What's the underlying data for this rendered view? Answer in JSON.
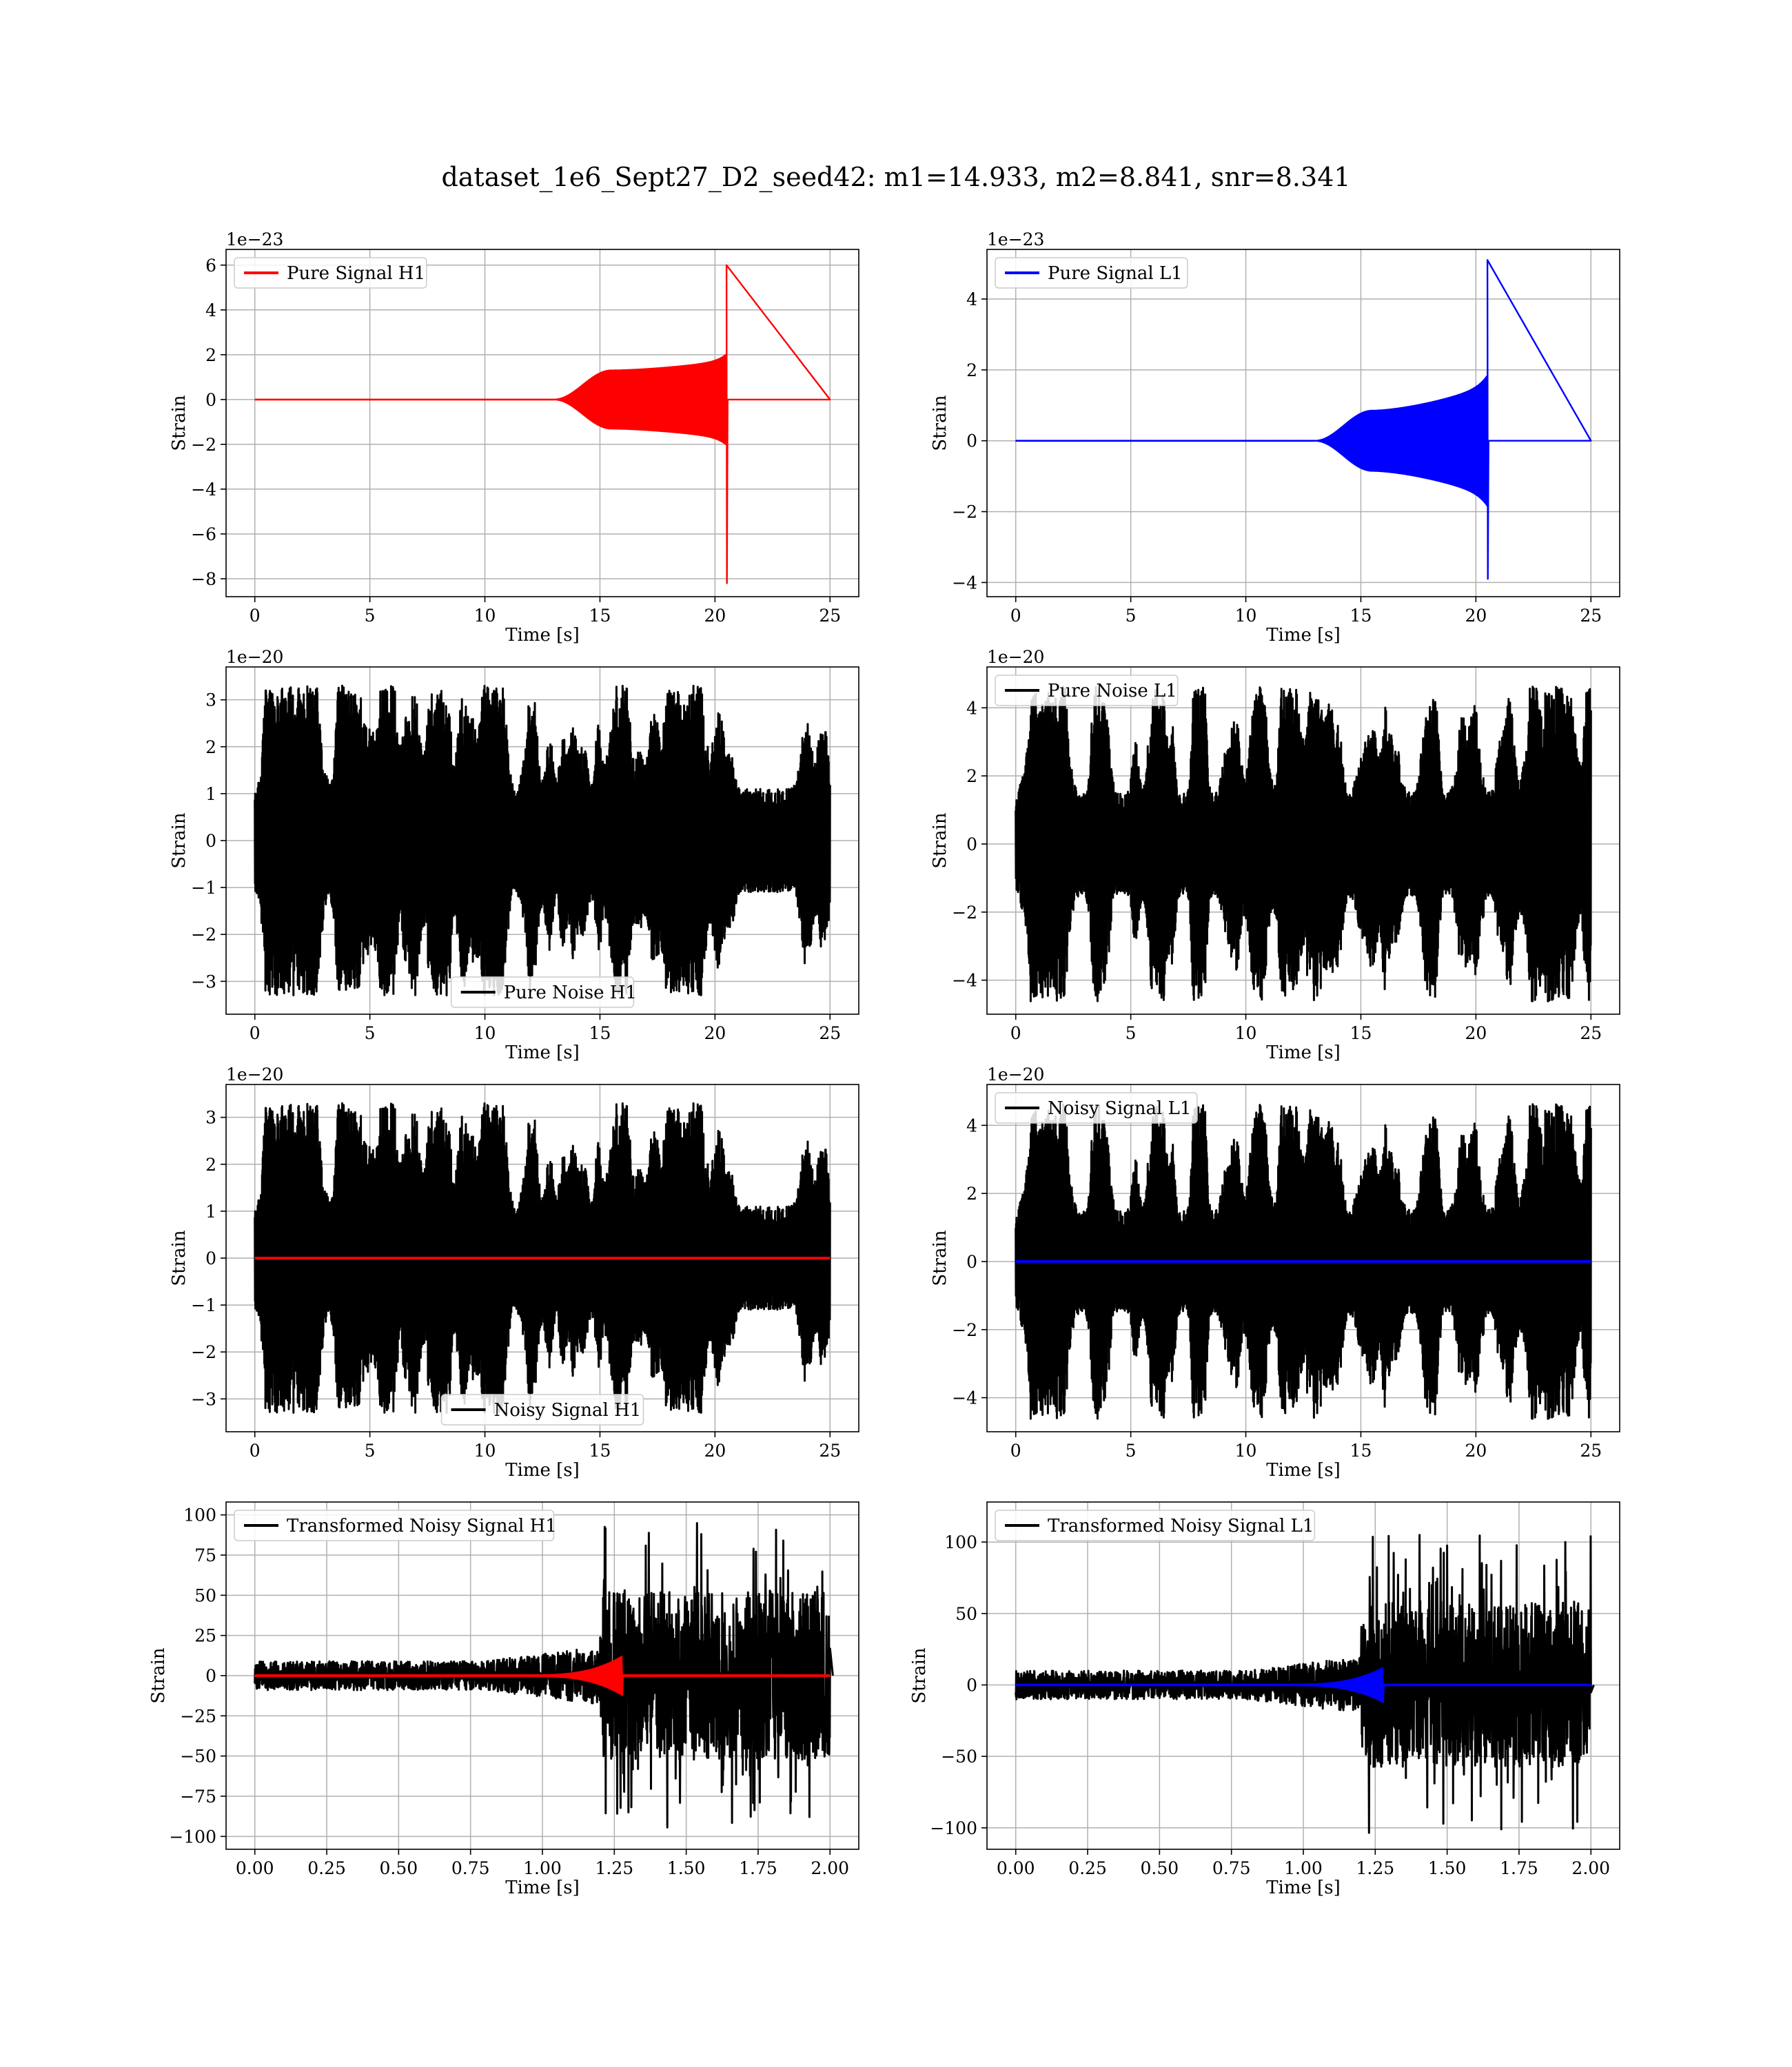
{
  "figure_title": "dataset_1e6_Sept27_D2_seed42: m1=14.933, m2=8.841, snr=8.341",
  "colors": {
    "h1_signal": "#ff0000",
    "l1_signal": "#0000ff",
    "noise": "#000000",
    "grid": "#b0b0b0",
    "axes": "#000000",
    "background": "#ffffff"
  },
  "chart_data": [
    {
      "id": "pure-signal-h1",
      "type": "line",
      "xlabel": "Time [s]",
      "ylabel": "Strain",
      "offset_text": "1e−23",
      "xlim": [
        -1.25,
        26.25
      ],
      "ylim": [
        -8.8,
        6.7
      ],
      "xticks": [
        0,
        5,
        10,
        15,
        20,
        25
      ],
      "yticks": [
        -8,
        -6,
        -4,
        -2,
        0,
        2,
        4,
        6
      ],
      "xtick_labels": [
        "0",
        "5",
        "10",
        "15",
        "20",
        "25"
      ],
      "ytick_labels": [
        "−8",
        "−6",
        "−4",
        "−2",
        "0",
        "2",
        "4",
        "6"
      ],
      "grid": true,
      "legend": "upper-left",
      "series": [
        {
          "name": "Pure Signal H1",
          "color": "#ff0000",
          "kind": "chirp",
          "params": {
            "t_merger": 20.5,
            "t_end": 25,
            "rise_start": 13.0,
            "plateau": 1.3,
            "plateau_t": 15.5,
            "peak_pos": 6.0,
            "peak_neg": -8.2
          }
        }
      ]
    },
    {
      "id": "pure-signal-l1",
      "type": "line",
      "xlabel": "Time [s]",
      "ylabel": "Strain",
      "offset_text": "1e−23",
      "xlim": [
        -1.25,
        26.25
      ],
      "ylim": [
        -4.4,
        5.4
      ],
      "xticks": [
        0,
        5,
        10,
        15,
        20,
        25
      ],
      "yticks": [
        -4,
        -2,
        0,
        2,
        4
      ],
      "xtick_labels": [
        "0",
        "5",
        "10",
        "15",
        "20",
        "25"
      ],
      "ytick_labels": [
        "−4",
        "−2",
        "0",
        "2",
        "4"
      ],
      "grid": true,
      "legend": "upper-left",
      "series": [
        {
          "name": "Pure Signal L1",
          "color": "#0000ff",
          "kind": "chirp",
          "params": {
            "t_merger": 20.5,
            "t_end": 25,
            "rise_start": 13.0,
            "plateau": 0.85,
            "plateau_t": 15.5,
            "peak_pos": 5.1,
            "peak_neg": -3.9
          }
        }
      ]
    },
    {
      "id": "pure-noise-h1",
      "type": "line",
      "xlabel": "Time [s]",
      "ylabel": "Strain",
      "offset_text": "1e−20",
      "xlim": [
        -1.25,
        26.25
      ],
      "ylim": [
        -3.7,
        3.7
      ],
      "xticks": [
        0,
        5,
        10,
        15,
        20,
        25
      ],
      "yticks": [
        -3,
        -2,
        -1,
        0,
        1,
        2,
        3
      ],
      "xtick_labels": [
        "0",
        "5",
        "10",
        "15",
        "20",
        "25"
      ],
      "ytick_labels": [
        "−3",
        "−2",
        "−1",
        "0",
        "1",
        "2",
        "3"
      ],
      "grid": true,
      "legend": "lower-center",
      "series": [
        {
          "name": "Pure Noise H1",
          "color": "#000000",
          "kind": "noise",
          "params": {
            "t_end": 25,
            "amp": 3.0,
            "base": 1.1,
            "seed": 11
          }
        }
      ]
    },
    {
      "id": "pure-noise-l1",
      "type": "line",
      "xlabel": "Time [s]",
      "ylabel": "Strain",
      "offset_text": "1e−20",
      "xlim": [
        -1.25,
        26.25
      ],
      "ylim": [
        -5.0,
        5.2
      ],
      "xticks": [
        0,
        5,
        10,
        15,
        20,
        25
      ],
      "yticks": [
        -4,
        -2,
        0,
        2,
        4
      ],
      "xtick_labels": [
        "0",
        "5",
        "10",
        "15",
        "20",
        "25"
      ],
      "ytick_labels": [
        "−4",
        "−2",
        "0",
        "2",
        "4"
      ],
      "grid": true,
      "legend": "upper-left",
      "series": [
        {
          "name": "Pure Noise L1",
          "color": "#000000",
          "kind": "noise",
          "params": {
            "t_end": 25,
            "amp": 4.2,
            "base": 1.5,
            "seed": 23
          }
        }
      ]
    },
    {
      "id": "noisy-signal-h1",
      "type": "line",
      "xlabel": "Time [s]",
      "ylabel": "Strain",
      "offset_text": "1e−20",
      "xlim": [
        -1.25,
        26.25
      ],
      "ylim": [
        -3.7,
        3.7
      ],
      "xticks": [
        0,
        5,
        10,
        15,
        20,
        25
      ],
      "yticks": [
        -3,
        -2,
        -1,
        0,
        1,
        2,
        3
      ],
      "xtick_labels": [
        "0",
        "5",
        "10",
        "15",
        "20",
        "25"
      ],
      "ytick_labels": [
        "−3",
        "−2",
        "−1",
        "0",
        "1",
        "2",
        "3"
      ],
      "grid": true,
      "legend": "lower-center",
      "series": [
        {
          "name": "Noisy Signal H1",
          "color": "#000000",
          "kind": "noise",
          "params": {
            "t_end": 25,
            "amp": 3.0,
            "base": 1.1,
            "seed": 11
          }
        },
        {
          "name": "",
          "color": "#ff0000",
          "kind": "flat",
          "params": {
            "t_end": 25,
            "value": 0
          }
        }
      ]
    },
    {
      "id": "noisy-signal-l1",
      "type": "line",
      "xlabel": "Time [s]",
      "ylabel": "Strain",
      "offset_text": "1e−20",
      "xlim": [
        -1.25,
        26.25
      ],
      "ylim": [
        -5.0,
        5.2
      ],
      "xticks": [
        0,
        5,
        10,
        15,
        20,
        25
      ],
      "yticks": [
        -4,
        -2,
        0,
        2,
        4
      ],
      "xtick_labels": [
        "0",
        "5",
        "10",
        "15",
        "20",
        "25"
      ],
      "ytick_labels": [
        "−4",
        "−2",
        "0",
        "2",
        "4"
      ],
      "grid": true,
      "legend": "upper-left",
      "series": [
        {
          "name": "Noisy Signal L1",
          "color": "#000000",
          "kind": "noise",
          "params": {
            "t_end": 25,
            "amp": 4.2,
            "base": 1.5,
            "seed": 23
          }
        },
        {
          "name": "",
          "color": "#0000ff",
          "kind": "flat",
          "params": {
            "t_end": 25,
            "value": 0
          }
        }
      ]
    },
    {
      "id": "transformed-noisy-signal-h1",
      "type": "line",
      "xlabel": "Time [s]",
      "ylabel": "Strain",
      "offset_text": "",
      "xlim": [
        -0.1,
        2.1
      ],
      "ylim": [
        -108,
        108
      ],
      "xticks": [
        0,
        0.25,
        0.5,
        0.75,
        1.0,
        1.25,
        1.5,
        1.75,
        2.0
      ],
      "yticks": [
        -100,
        -75,
        -50,
        -25,
        0,
        25,
        50,
        75,
        100
      ],
      "xtick_labels": [
        "0.00",
        "0.25",
        "0.50",
        "0.75",
        "1.00",
        "1.25",
        "1.50",
        "1.75",
        "2.00"
      ],
      "ytick_labels": [
        "−100",
        "−75",
        "−50",
        "−25",
        "0",
        "25",
        "50",
        "75",
        "100"
      ],
      "grid": true,
      "legend": "upper-left",
      "series": [
        {
          "name": "Transformed Noisy Signal H1",
          "color": "#000000",
          "kind": "transformed",
          "params": {
            "t_end": 2.0,
            "low": 9,
            "mid_t": 0.8,
            "mid": 18,
            "jump_t": 1.2,
            "high": 95,
            "seed": 5
          }
        },
        {
          "name": "",
          "color": "#ff0000",
          "kind": "minichirp",
          "params": {
            "t_end": 2.0,
            "t_merger": 1.28,
            "rise_start": 0.95,
            "peak": 12
          }
        }
      ]
    },
    {
      "id": "transformed-noisy-signal-l1",
      "type": "line",
      "xlabel": "Time [s]",
      "ylabel": "Strain",
      "offset_text": "",
      "xlim": [
        -0.1,
        2.1
      ],
      "ylim": [
        -115,
        128
      ],
      "xticks": [
        0,
        0.25,
        0.5,
        0.75,
        1.0,
        1.25,
        1.5,
        1.75,
        2.0
      ],
      "yticks": [
        -100,
        -50,
        0,
        50,
        100
      ],
      "xtick_labels": [
        "0.00",
        "0.25",
        "0.50",
        "0.75",
        "1.00",
        "1.25",
        "1.50",
        "1.75",
        "2.00"
      ],
      "ytick_labels": [
        "−100",
        "−50",
        "0",
        "50",
        "100"
      ],
      "grid": true,
      "legend": "upper-left",
      "series": [
        {
          "name": "Transformed Noisy Signal L1",
          "color": "#000000",
          "kind": "transformed",
          "params": {
            "t_end": 2.0,
            "low": 10,
            "mid_t": 0.8,
            "mid": 20,
            "jump_t": 1.2,
            "high": 105,
            "seed": 9
          }
        },
        {
          "name": "",
          "color": "#0000ff",
          "kind": "minichirp",
          "params": {
            "t_end": 2.0,
            "t_merger": 1.28,
            "rise_start": 0.95,
            "peak": 12
          }
        }
      ]
    }
  ]
}
